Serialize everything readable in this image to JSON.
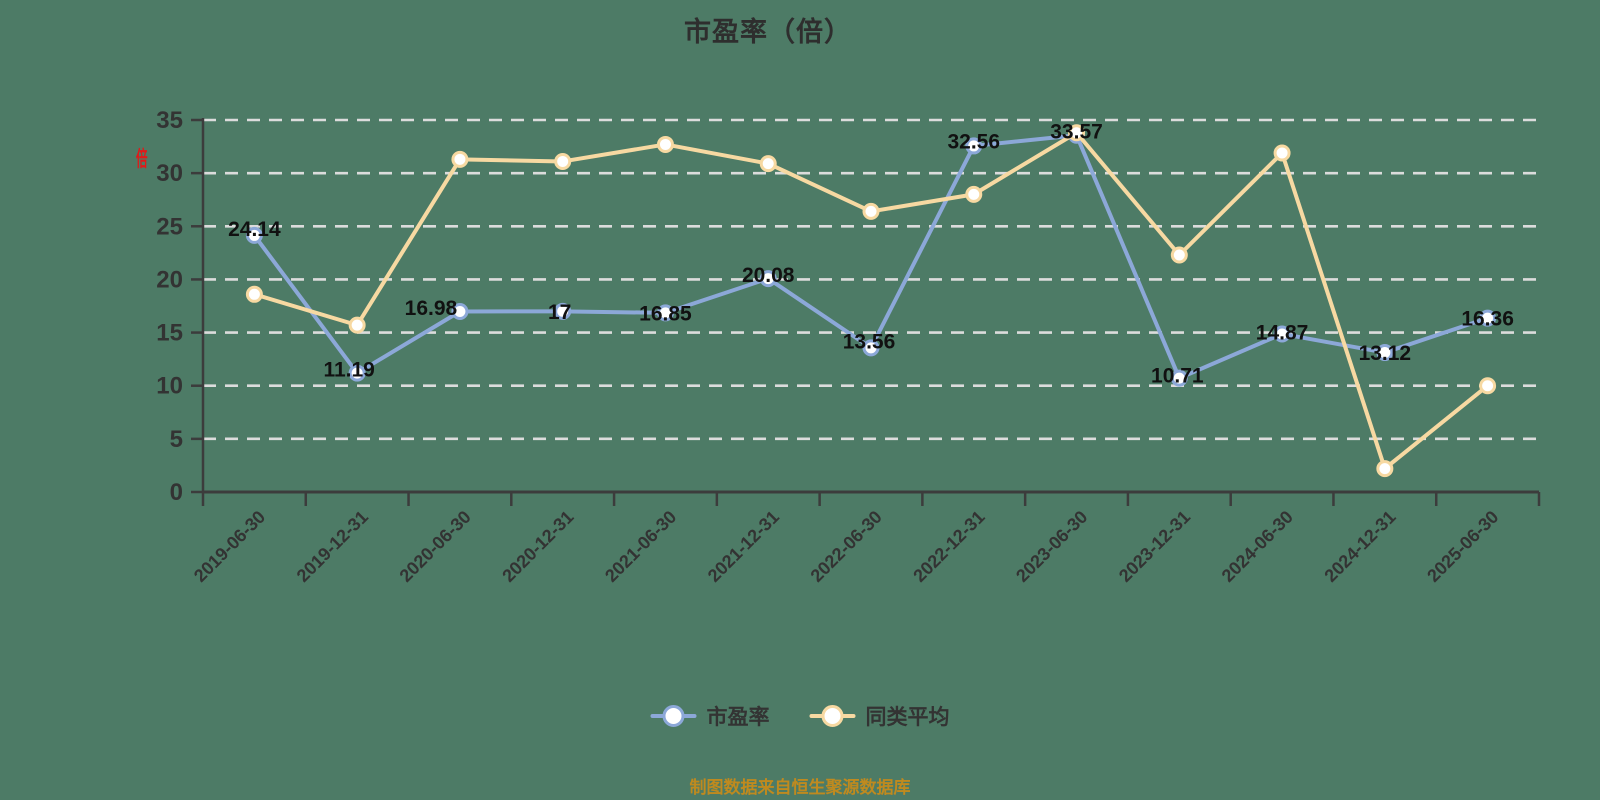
{
  "title": "市盈率（倍）",
  "y_axis_unit": "倍",
  "footer": "制图数据来自恒生聚源数据库",
  "colors": {
    "background": "#4D7B66",
    "pe_series": "#8CA8D8",
    "avg_series": "#F7D9A2",
    "grid": "#DCDCDC",
    "axis": "#3C3C3C",
    "tick_label": "#333333",
    "data_label": "#111111",
    "marker_fill": "#FFFFFF",
    "footer": "#BF8A1F",
    "unit": "#E21818"
  },
  "legend": {
    "items": [
      {
        "key": "pe-ratio",
        "label": "市盈率",
        "color": "#8CA8D8"
      },
      {
        "key": "peer-average",
        "label": "同类平均",
        "color": "#F7D9A2"
      }
    ]
  },
  "chart_data": {
    "type": "line",
    "title": "市盈率（倍）",
    "categories": [
      "2019-06-30",
      "2019-12-31",
      "2020-06-30",
      "2020-12-31",
      "2021-06-30",
      "2021-12-31",
      "2022-06-30",
      "2022-12-31",
      "2023-06-30",
      "2023-12-31",
      "2024-06-30",
      "2024-12-31",
      "2025-06-30"
    ],
    "series": [
      {
        "name": "市盈率",
        "key": "pe-ratio",
        "color": "#8CA8D8",
        "values": [
          24.14,
          11.19,
          16.98,
          17,
          16.85,
          20.08,
          13.56,
          32.56,
          33.57,
          10.71,
          14.87,
          13.12,
          16.36
        ],
        "labels_visible": true,
        "label_offsets": [
          [
            0,
            -7
          ],
          [
            -8,
            -4
          ],
          [
            -29,
            -4
          ],
          [
            -3,
            0
          ],
          [
            0,
            0
          ],
          [
            0,
            -4
          ],
          [
            -2,
            -7
          ],
          [
            0,
            -5
          ],
          [
            0,
            -4
          ],
          [
            -2,
            -3
          ],
          [
            0,
            -2
          ],
          [
            0,
            0
          ],
          [
            0,
            0
          ]
        ]
      },
      {
        "name": "同类平均",
        "key": "peer-average",
        "color": "#F7D9A2",
        "values": [
          18.6,
          15.7,
          31.3,
          31.1,
          32.7,
          30.9,
          26.4,
          28,
          33.8,
          22.3,
          31.9,
          2.2,
          10
        ],
        "labels_visible": false,
        "label_offsets": []
      }
    ],
    "ylim": [
      0,
      35
    ],
    "ytick_interval": 5,
    "grid": "dashed-horizontal-white",
    "legend_position": "bottom",
    "x_label_rotation": -45
  }
}
